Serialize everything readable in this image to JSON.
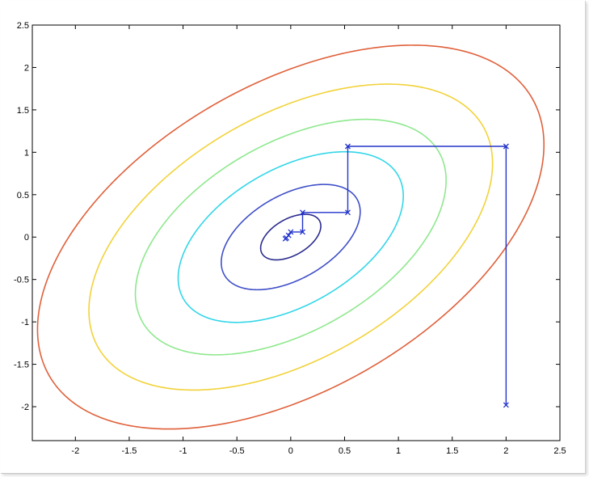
{
  "chart_data": {
    "type": "contour",
    "title": "",
    "xlabel": "",
    "ylabel": "",
    "xlim": [
      -2.4,
      2.5
    ],
    "ylim": [
      -2.4,
      2.5
    ],
    "x_ticks": [
      -2,
      -1.5,
      -1,
      -0.5,
      0,
      0.5,
      1,
      1.5,
      2,
      2.5
    ],
    "x_tick_labels": [
      "-2",
      "-1.5",
      "-1",
      "-0.5",
      "0",
      "0.5",
      "1",
      "1.5",
      "2",
      "2.5"
    ],
    "y_ticks": [
      -2,
      -1.5,
      -1,
      -0.5,
      0,
      0.5,
      1,
      1.5,
      2,
      2.5
    ],
    "y_tick_labels": [
      "-2",
      "-1.5",
      "-1",
      "-0.5",
      "0",
      "0.5",
      "1",
      "1.5",
      "2",
      "2.5"
    ],
    "grid": false,
    "contour_function": {
      "form": "a*x^2 - b*x*y + c*y^2",
      "a": 1.0,
      "b": 1.0,
      "c": 1.08
    },
    "contour_levels": [
      {
        "level": 0.06,
        "color": "#2b2b8f"
      },
      {
        "level": 0.32,
        "color": "#3f4fc8"
      },
      {
        "level": 0.84,
        "color": "#33d6e8"
      },
      {
        "level": 1.6,
        "color": "#8ee88e"
      },
      {
        "level": 2.7,
        "color": "#f2d23a"
      },
      {
        "level": 4.25,
        "color": "#e0603a"
      }
    ],
    "descent_path": {
      "color": "#2233cc",
      "marker": "x",
      "points": [
        [
          2.0,
          -1.98
        ],
        [
          2.0,
          1.07
        ],
        [
          0.53,
          1.07
        ],
        [
          0.53,
          0.29
        ],
        [
          0.11,
          0.29
        ],
        [
          0.11,
          0.06
        ],
        [
          0.0,
          0.06
        ],
        [
          -0.02,
          0.02
        ],
        [
          -0.04,
          -0.01
        ],
        [
          -0.05,
          -0.02
        ]
      ]
    }
  }
}
